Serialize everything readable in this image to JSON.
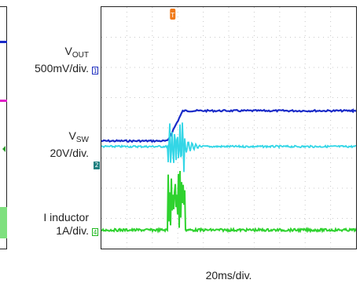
{
  "chart_data": {
    "type": "line",
    "title": "",
    "xlabel": "20ms/div.",
    "ylabel": "",
    "grid": true,
    "x_divisions": 10,
    "y_divisions": 8,
    "series": [
      {
        "name": "V_OUT",
        "scale": "500mV/div.",
        "marker": "1",
        "color": "#1a2bc8",
        "baseline_div": 2.15,
        "step_div": 1.0,
        "step_start_div": 2.6,
        "step_end_div": 3.2
      },
      {
        "name": "V_SW",
        "scale": "20V/div.",
        "marker": "2",
        "color": "#33d6e6",
        "baseline_div": 4.62,
        "burst_start_div": 2.6,
        "burst_end_div": 3.3,
        "burst_amplitude_div": 0.9
      },
      {
        "name": "I inductor",
        "scale": "1A/div.",
        "marker": "4",
        "color": "#2fd22f",
        "baseline_div": 7.1,
        "burst_start_div": 2.6,
        "burst_end_div": 3.3,
        "burst_amplitude_div": 2.1
      }
    ]
  },
  "labels": {
    "vout_main": "V",
    "vout_sub": "OUT",
    "vout_scale": "500mV/div.",
    "vsw_main": "V",
    "vsw_sub": "SW",
    "vsw_scale": "20V/div.",
    "il_main": "I inductor",
    "il_scale": "1A/div.",
    "timebase": "20ms/div."
  },
  "markers": {
    "ch1": "1",
    "ch2": "2",
    "ch4": "4",
    "trigger": "T"
  },
  "colors": {
    "vout": "#1a2bc8",
    "vsw": "#33d6e6",
    "il": "#2fd22f",
    "trigger": "#f07a1a",
    "grid": "#c8c8c8"
  }
}
